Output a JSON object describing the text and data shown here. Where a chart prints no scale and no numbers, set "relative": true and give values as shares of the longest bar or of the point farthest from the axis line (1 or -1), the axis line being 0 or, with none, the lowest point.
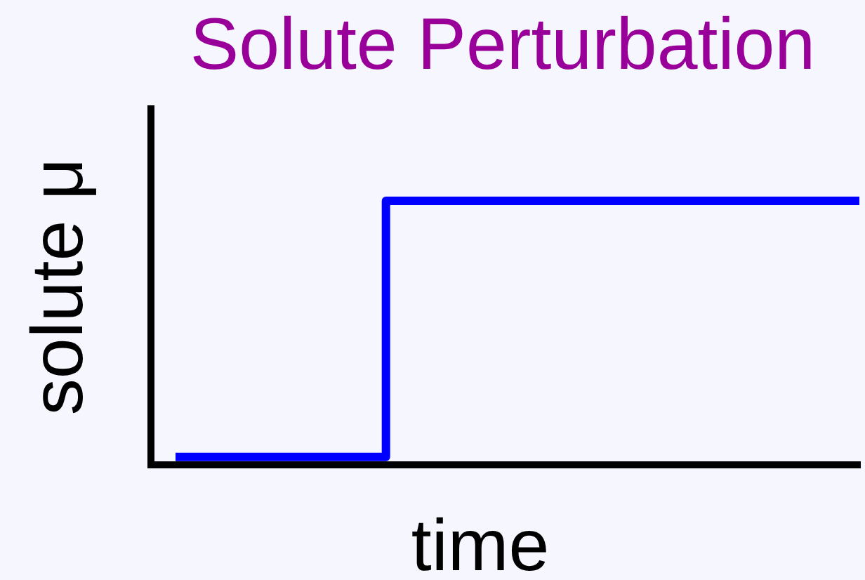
{
  "chart_data": {
    "type": "step",
    "title": "Solute Perturbation",
    "xlabel": "time",
    "ylabel": "solute μ",
    "categories": [
      null,
      null,
      null,
      null,
      null,
      null,
      null,
      null,
      null,
      null,
      null,
      null,
      null,
      null
    ],
    "values": [
      0.03,
      0.03,
      0.03,
      0.03,
      1,
      1,
      1,
      1,
      1,
      1,
      1,
      1,
      1,
      1
    ],
    "color": "#0000ff",
    "relative": true,
    "marker": "none"
  }
}
